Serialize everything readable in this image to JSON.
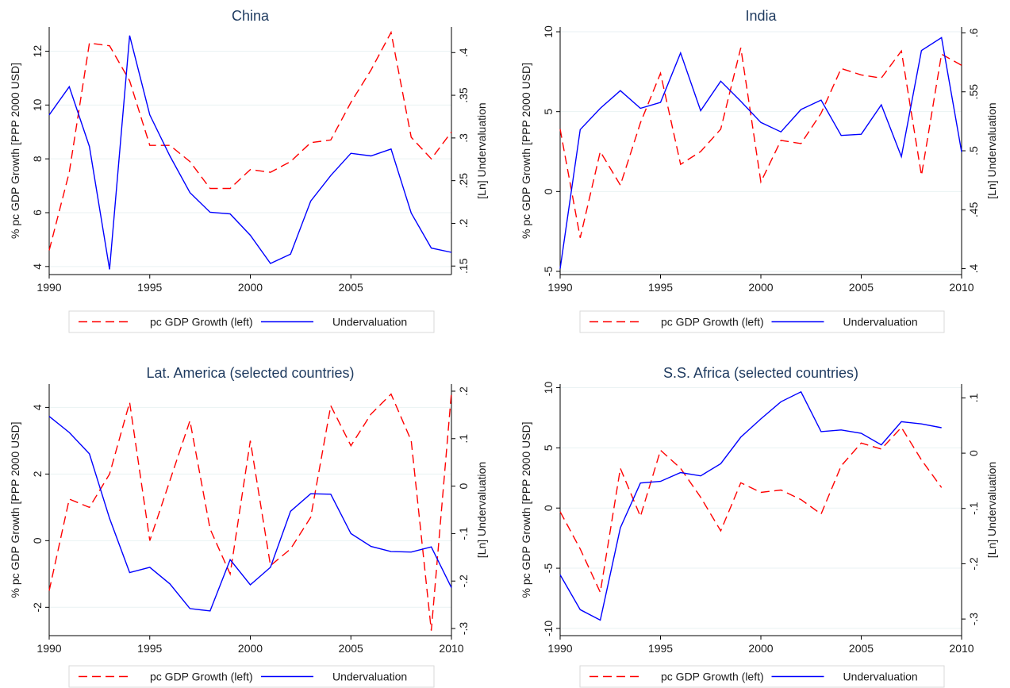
{
  "chart_data": [
    {
      "type": "line",
      "title": "China",
      "ylabel_left": "% pc GDP Growth [PPP 2000 USD]",
      "ylabel_right": "[Ln] Undervaluation",
      "xlim": [
        1990,
        2010
      ],
      "ylim_left": [
        3.7,
        12.9
      ],
      "ylim_right": [
        0.14,
        0.43
      ],
      "xticks": [
        1990,
        1995,
        2000,
        2005
      ],
      "yticks_left": [
        4,
        6,
        8,
        10,
        12
      ],
      "yticks_right": [
        0.15,
        0.2,
        0.25,
        0.3,
        0.35,
        0.4
      ],
      "yticks_right_labels": [
        ".15",
        ".2",
        ".25",
        ".3",
        ".35",
        ".4"
      ],
      "grid": true,
      "legend_position": "bottom",
      "series": [
        {
          "name": "pc GDP Growth (left)",
          "axis": "left",
          "color": "#ff0000",
          "dash": "dashed",
          "x": [
            1990,
            1991,
            1992,
            1993,
            1994,
            1995,
            1996,
            1997,
            1998,
            1999,
            2000,
            2001,
            2002,
            2003,
            2004,
            2005,
            2006,
            2007,
            2008,
            2009,
            2010
          ],
          "y": [
            4.6,
            7.5,
            12.3,
            12.2,
            10.9,
            8.5,
            8.5,
            7.9,
            6.9,
            6.9,
            7.6,
            7.5,
            7.9,
            8.6,
            8.7,
            10.1,
            11.3,
            12.7,
            8.8,
            8.0,
            9.0
          ]
        },
        {
          "name": "Undervaluation",
          "axis": "right",
          "color": "#0000ff",
          "dash": "solid",
          "x": [
            1990,
            1991,
            1992,
            1993,
            1994,
            1995,
            1996,
            1997,
            1998,
            1999,
            2000,
            2001,
            2002,
            2003,
            2004,
            2005,
            2006,
            2007,
            2008,
            2009,
            2010
          ],
          "y": [
            0.327,
            0.36,
            0.29,
            0.146,
            0.42,
            0.327,
            0.279,
            0.236,
            0.213,
            0.211,
            0.186,
            0.153,
            0.164,
            0.226,
            0.256,
            0.282,
            0.279,
            0.287,
            0.212,
            0.171,
            0.166
          ]
        }
      ]
    },
    {
      "type": "line",
      "title": "India",
      "ylabel_left": "% pc GDP Growth [PPP 2000 USD]",
      "ylabel_right": "[Ln] Undervaluation",
      "xlim": [
        1990,
        2010
      ],
      "ylim_left": [
        -5.2,
        10.3
      ],
      "ylim_right": [
        0.395,
        0.605
      ],
      "xticks": [
        1990,
        1995,
        2000,
        2005,
        2010
      ],
      "yticks_left": [
        -5,
        0,
        5,
        10
      ],
      "yticks_right": [
        0.4,
        0.45,
        0.5,
        0.55,
        0.6
      ],
      "yticks_right_labels": [
        ".4",
        ".45",
        ".5",
        ".55",
        ".6"
      ],
      "grid": true,
      "legend_position": "bottom",
      "series": [
        {
          "name": "pc GDP Growth (left)",
          "axis": "left",
          "color": "#ff0000",
          "dash": "dashed",
          "x": [
            1990,
            1991,
            1992,
            1993,
            1994,
            1995,
            1996,
            1997,
            1998,
            1999,
            2000,
            2001,
            2002,
            2003,
            2004,
            2005,
            2006,
            2007,
            2008,
            2009,
            2010
          ],
          "y": [
            3.9,
            -2.9,
            2.5,
            0.4,
            4.3,
            7.4,
            1.7,
            2.5,
            3.9,
            9.0,
            0.6,
            3.2,
            3.0,
            4.9,
            7.7,
            7.3,
            7.1,
            8.8,
            1.0,
            8.6,
            7.9
          ]
        },
        {
          "name": "Undervaluation",
          "axis": "right",
          "color": "#0000ff",
          "dash": "solid",
          "x": [
            1990,
            1991,
            1992,
            1993,
            1994,
            1995,
            1996,
            1997,
            1998,
            1999,
            2000,
            2001,
            2002,
            2003,
            2004,
            2005,
            2006,
            2007,
            2008,
            2009,
            2010
          ],
          "y": [
            0.4,
            0.518,
            0.536,
            0.551,
            0.536,
            0.541,
            0.583,
            0.534,
            0.559,
            0.542,
            0.524,
            0.516,
            0.535,
            0.543,
            0.513,
            0.514,
            0.539,
            0.495,
            0.585,
            0.596,
            0.499
          ]
        }
      ]
    },
    {
      "type": "line",
      "title": "Lat. America (selected countries)",
      "ylabel_left": "% pc GDP Growth [PPP 2000 USD]",
      "ylabel_right": "[Ln] Undervaluation",
      "xlim": [
        1990,
        2010
      ],
      "ylim_left": [
        -2.85,
        4.7
      ],
      "ylim_right": [
        -0.315,
        0.215
      ],
      "xticks": [
        1990,
        1995,
        2000,
        2005,
        2010
      ],
      "yticks_left": [
        -2,
        0,
        2,
        4
      ],
      "yticks_right": [
        -0.3,
        -0.2,
        -0.1,
        0,
        0.1,
        0.2
      ],
      "yticks_right_labels": [
        "-.3",
        "-.2",
        "-.1",
        "0",
        ".1",
        ".2"
      ],
      "grid": true,
      "legend_position": "bottom",
      "series": [
        {
          "name": "pc GDP Growth (left)",
          "axis": "left",
          "color": "#ff0000",
          "dash": "dashed",
          "x": [
            1990,
            1991,
            1992,
            1993,
            1994,
            1995,
            1996,
            1997,
            1998,
            1999,
            2000,
            2001,
            2002,
            2003,
            2004,
            2005,
            2006,
            2007,
            2008,
            2009,
            2010
          ],
          "y": [
            -1.5,
            1.25,
            1.0,
            2.0,
            4.15,
            0.0,
            1.8,
            3.6,
            0.35,
            -1.0,
            3.0,
            -0.75,
            -0.25,
            0.7,
            4.05,
            2.85,
            3.8,
            4.4,
            3.0,
            -2.7,
            4.45
          ]
        },
        {
          "name": "Undervaluation",
          "axis": "right",
          "color": "#0000ff",
          "dash": "solid",
          "x": [
            1990,
            1991,
            1992,
            1993,
            1994,
            1995,
            1996,
            1997,
            1998,
            1999,
            2000,
            2001,
            2002,
            2003,
            2004,
            2005,
            2006,
            2007,
            2008,
            2009,
            2010
          ],
          "y": [
            0.147,
            0.113,
            0.068,
            -0.068,
            -0.182,
            -0.171,
            -0.206,
            -0.258,
            -0.263,
            -0.155,
            -0.208,
            -0.171,
            -0.053,
            -0.016,
            -0.017,
            -0.1,
            -0.127,
            -0.138,
            -0.139,
            -0.128,
            -0.214
          ]
        }
      ]
    },
    {
      "type": "line",
      "title": "S.S. Africa (selected countries)",
      "ylabel_left": "% pc GDP Growth [PPP 2000 USD]",
      "ylabel_right": "[Ln] Undervaluation",
      "xlim": [
        1990,
        2010
      ],
      "ylim_left": [
        -10.6,
        10.3
      ],
      "ylim_right": [
        -0.33,
        0.125
      ],
      "xticks": [
        1990,
        1995,
        2000,
        2005,
        2010
      ],
      "yticks_left": [
        -10,
        -5,
        0,
        5,
        10
      ],
      "yticks_right": [
        -0.3,
        -0.2,
        -0.1,
        0,
        0.1
      ],
      "yticks_right_labels": [
        "-.3",
        "-.2",
        "-.1",
        "0",
        ".1"
      ],
      "grid": true,
      "legend_position": "bottom",
      "series": [
        {
          "name": "pc GDP Growth (left)",
          "axis": "left",
          "color": "#ff0000",
          "dash": "dashed",
          "x": [
            1990,
            1991,
            1992,
            1993,
            1994,
            1995,
            1996,
            1997,
            1998,
            1999,
            2000,
            2001,
            2002,
            2003,
            2004,
            2005,
            2006,
            2007,
            2008,
            2009
          ],
          "y": [
            -0.3,
            -3.4,
            -7.0,
            3.3,
            -0.7,
            4.8,
            3.3,
            0.9,
            -1.9,
            2.1,
            1.3,
            1.5,
            0.7,
            -0.5,
            3.5,
            5.4,
            4.9,
            6.7,
            4.0,
            1.7
          ]
        },
        {
          "name": "Undervaluation",
          "axis": "right",
          "color": "#0000ff",
          "dash": "solid",
          "x": [
            1990,
            1991,
            1992,
            1993,
            1994,
            1995,
            1996,
            1997,
            1998,
            1999,
            2000,
            2001,
            2002,
            2003,
            2004,
            2005,
            2006,
            2007,
            2008,
            2009
          ],
          "y": [
            -0.22,
            -0.283,
            -0.302,
            -0.135,
            -0.054,
            -0.051,
            -0.035,
            -0.041,
            -0.019,
            0.029,
            0.062,
            0.093,
            0.111,
            0.039,
            0.042,
            0.036,
            0.015,
            0.057,
            0.053,
            0.046
          ]
        }
      ]
    }
  ]
}
